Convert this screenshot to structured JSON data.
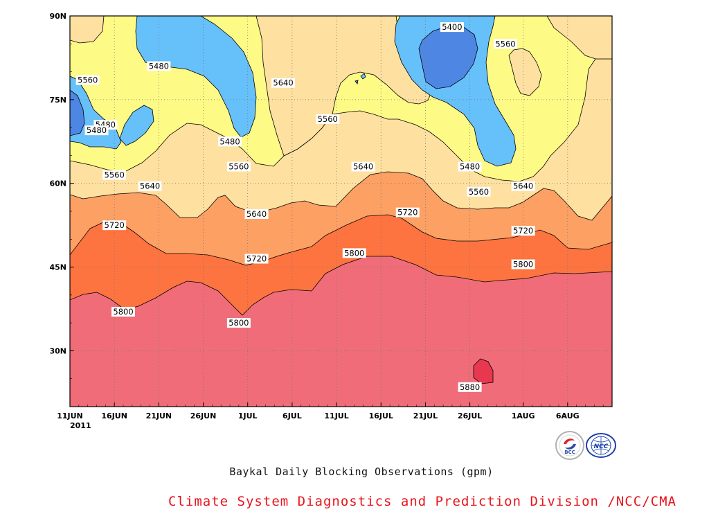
{
  "chart_data": {
    "type": "heatmap",
    "subtitle": "Baykal Daily Blocking Observations (gpm)",
    "year_label": "2011",
    "x_ticks": [
      "11JUN",
      "16JUN",
      "21JUN",
      "26JUN",
      "1JUL",
      "6JUL",
      "11JUL",
      "16JUL",
      "21JUL",
      "26JUL",
      "1AUG",
      "6AUG"
    ],
    "y_ticks": [
      "30N",
      "45N",
      "60N",
      "75N",
      "90N"
    ],
    "x_range": [
      "2011-06-11",
      "2011-08-11"
    ],
    "y_range": [
      "20N",
      "90N"
    ],
    "grid": "dotted",
    "levels": [
      5400,
      5480,
      5560,
      5640,
      5720,
      5800,
      5880
    ],
    "colors": {
      "lt5400": "#4e86e4",
      "b5400": "#5898ec",
      "b5480": "#66c0fa",
      "b5560": "#fefa86",
      "b5640": "#fee0a0",
      "b5720": "#fda064",
      "b5800": "#fd7440",
      "b5880": "#f06c78",
      "gt5880": "#e83850",
      "text_red": "#e8141c"
    },
    "contour_labels": [
      {
        "text": "5400",
        "date": "2011-07-24",
        "lat": 88
      },
      {
        "text": "5560",
        "date": "2011-07-30",
        "lat": 85
      },
      {
        "text": "5480",
        "date": "2011-06-21",
        "lat": 81
      },
      {
        "text": "5560",
        "date": "2011-06-13",
        "lat": 78.5
      },
      {
        "text": "5640",
        "date": "2011-07-05",
        "lat": 78
      },
      {
        "text": "5480",
        "date": "2011-06-15",
        "lat": 70.5
      },
      {
        "text": "5480",
        "date": "2011-06-14",
        "lat": 69.5
      },
      {
        "text": "5560",
        "date": "2011-07-10",
        "lat": 71.5
      },
      {
        "text": "5480",
        "date": "2011-06-29",
        "lat": 67.5
      },
      {
        "text": "5560",
        "date": "2011-06-30",
        "lat": 63
      },
      {
        "text": "5640",
        "date": "2011-07-14",
        "lat": 63
      },
      {
        "text": "5480",
        "date": "2011-07-26",
        "lat": 63
      },
      {
        "text": "5560",
        "date": "2011-06-16",
        "lat": 61.5
      },
      {
        "text": "5640",
        "date": "2011-06-20",
        "lat": 59.5
      },
      {
        "text": "5560",
        "date": "2011-07-27",
        "lat": 58.5
      },
      {
        "text": "5640",
        "date": "2011-08-01",
        "lat": 59.5
      },
      {
        "text": "5640",
        "date": "2011-07-02",
        "lat": 54.5
      },
      {
        "text": "5720",
        "date": "2011-06-16",
        "lat": 52.5
      },
      {
        "text": "5720",
        "date": "2011-07-19",
        "lat": 54.8
      },
      {
        "text": "5720",
        "date": "2011-08-01",
        "lat": 51.5
      },
      {
        "text": "5720",
        "date": "2011-07-02",
        "lat": 46.5
      },
      {
        "text": "5800",
        "date": "2011-07-13",
        "lat": 47.5
      },
      {
        "text": "5800",
        "date": "2011-08-01",
        "lat": 45.5
      },
      {
        "text": "5800",
        "date": "2011-06-17",
        "lat": 37
      },
      {
        "text": "5800",
        "date": "2011-06-30",
        "lat": 35
      },
      {
        "text": "5880",
        "date": "2011-07-26",
        "lat": 23.5
      }
    ]
  },
  "footer": {
    "subtitle": "Baykal Daily Blocking Observations (gpm)",
    "org_line": "Climate System Diagnostics and Prediction Division /NCC/CMA",
    "logo_bcc_text": "BCC",
    "logo_ncc_text": "NCC"
  }
}
